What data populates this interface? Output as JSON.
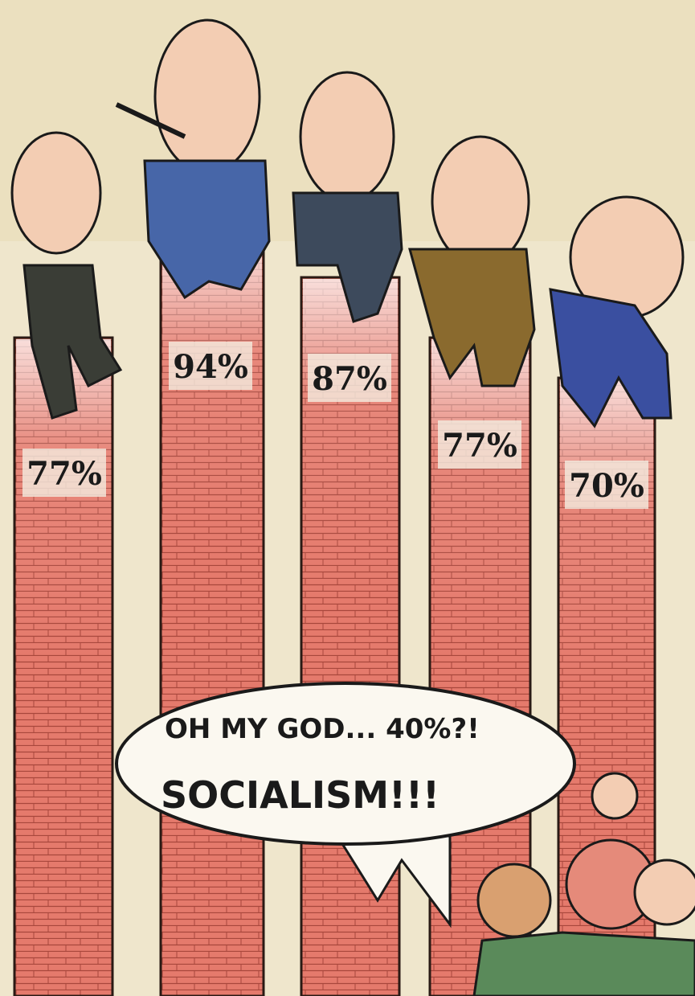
{
  "cartoon": {
    "bars": [
      {
        "label": "77%"
      },
      {
        "label": "94%"
      },
      {
        "label": "87%"
      },
      {
        "label": "77%"
      },
      {
        "label": "70%"
      }
    ],
    "speech_bubble": {
      "line1": "OH MY GOD... 40%?!",
      "line2": "SOCIALISM!!!"
    }
  }
}
